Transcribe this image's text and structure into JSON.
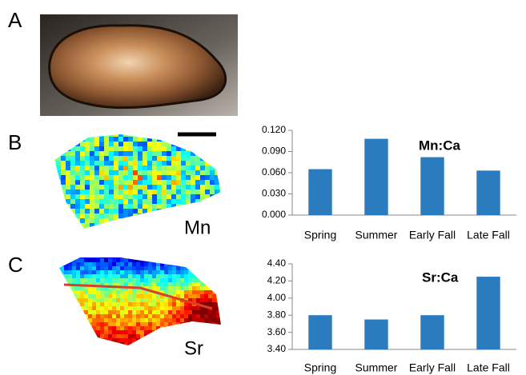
{
  "panels": {
    "labels": [
      "A",
      "B",
      "C"
    ],
    "maps": [
      "Mn",
      "Sr"
    ]
  },
  "chart_data": [
    {
      "type": "bar",
      "title": "Mn:Ca",
      "categories": [
        "Spring",
        "Summer",
        "Early Fall",
        "Late Fall"
      ],
      "values": [
        0.065,
        0.108,
        0.082,
        0.063
      ],
      "color": "#2b7bbf",
      "ylim": [
        0,
        0.12
      ],
      "yticks": [
        {
          "value": 0,
          "label": "0.000"
        },
        {
          "value": 0.03,
          "label": "0.030"
        },
        {
          "value": 0.06,
          "label": "0.060"
        },
        {
          "value": 0.09,
          "label": "0.090"
        },
        {
          "value": 0.12,
          "label": "0.120"
        }
      ],
      "grid": false
    },
    {
      "type": "bar",
      "title": "Sr:Ca",
      "categories": [
        "Spring",
        "Summer",
        "Early Fall",
        "Late Fall"
      ],
      "values": [
        3.8,
        3.75,
        3.8,
        4.25
      ],
      "color": "#2b7bbf",
      "ylim": [
        3.4,
        4.4
      ],
      "yticks": [
        {
          "value": 3.4,
          "label": "3.40"
        },
        {
          "value": 3.6,
          "label": "3.60"
        },
        {
          "value": 3.8,
          "label": "3.80"
        },
        {
          "value": 4.0,
          "label": "4.00"
        },
        {
          "value": 4.2,
          "label": "4.20"
        },
        {
          "value": 4.4,
          "label": "4.40"
        }
      ],
      "grid": false
    }
  ]
}
